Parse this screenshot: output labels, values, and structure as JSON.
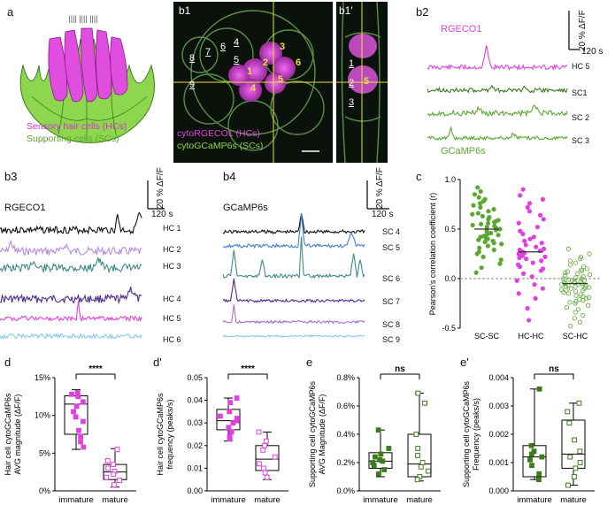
{
  "colors": {
    "magenta": "#e040e0",
    "green": "#5aa832",
    "dark_green": "#3c7a1e",
    "teal": "#3d8a86",
    "blue": "#3d7fd0",
    "light_blue": "#88c8ec",
    "purple": "#4b2a8e",
    "lavender": "#b88be0",
    "yellow": "#e8e040"
  },
  "panel_a": {
    "letter": "a",
    "legend_hc": "Sensory hair cells (HCs)",
    "legend_sc": "Supporting cells (SCs)"
  },
  "panel_b1": {
    "letter": "b1",
    "numbers_white": [
      "8",
      "7",
      "6",
      "4",
      "5",
      "9"
    ],
    "numbers_yellow": [
      "1",
      "2",
      "3",
      "4",
      "5",
      "6"
    ],
    "label_hc": "cytoRGECO1 (HCs)",
    "label_sc": "cytoGCaMP6s (SCs)"
  },
  "panel_b1p": {
    "letter": "b1'",
    "numbers_white": [
      "1",
      "2",
      "3"
    ],
    "number_yellow": "5"
  },
  "panel_b2": {
    "letter": "b2",
    "top_label": "RGECO1",
    "bottom_label": "GCaMP6s",
    "scale_y": "20 % ΔF/F",
    "scale_x": "120 s",
    "trace_labels": [
      "HC 5",
      "SC1",
      "SC 2",
      "SC 3"
    ]
  },
  "panel_b3": {
    "letter": "b3",
    "title": "RGECO1",
    "scale_y": "20 % ΔF/F",
    "scale_x": "120 s",
    "trace_labels": [
      "HC 1",
      "HC 2",
      "HC 3",
      "HC 4",
      "HC 5",
      "HC 6"
    ]
  },
  "panel_b4": {
    "letter": "b4",
    "title": "GCaMP6s",
    "scale_y": "20 % ΔF/F",
    "scale_x": "120 s",
    "trace_labels": [
      "SC 4",
      "SC 5",
      "SC 6",
      "SC 7",
      "SC 8",
      "SC 9"
    ]
  },
  "chart_data": [
    {
      "panel": "c",
      "type": "scatter",
      "ylabel": "Pearson's correlation coefficient (r)",
      "categories": [
        "SC-SC",
        "HC-HC",
        "SC-HC"
      ],
      "yticks": [
        "1.0",
        "0.5",
        "0.0",
        "-0.5"
      ],
      "ylim": [
        -0.5,
        1.0
      ],
      "means": [
        0.5,
        0.27,
        -0.05
      ],
      "series": [
        {
          "values": [
            0.92,
            0.88,
            0.85,
            0.82,
            0.8,
            0.78,
            0.76,
            0.74,
            0.72,
            0.7,
            0.68,
            0.66,
            0.65,
            0.63,
            0.62,
            0.6,
            0.59,
            0.58,
            0.57,
            0.56,
            0.55,
            0.54,
            0.53,
            0.52,
            0.51,
            0.5,
            0.49,
            0.48,
            0.47,
            0.46,
            0.45,
            0.44,
            0.43,
            0.42,
            0.41,
            0.4,
            0.39,
            0.38,
            0.37,
            0.36,
            0.35,
            0.33,
            0.31,
            0.29,
            0.27,
            0.25,
            0.22,
            0.19,
            0.15,
            0.11,
            0.06
          ]
        },
        {
          "values": [
            0.9,
            0.84,
            0.8,
            0.76,
            0.72,
            0.68,
            0.64,
            0.6,
            0.56,
            0.52,
            0.48,
            0.45,
            0.42,
            0.4,
            0.38,
            0.36,
            0.34,
            0.32,
            0.3,
            0.29,
            0.28,
            0.27,
            0.26,
            0.25,
            0.24,
            0.23,
            0.22,
            0.21,
            0.2,
            0.18,
            0.16,
            0.14,
            0.12,
            0.1,
            0.08,
            0.05,
            0.02,
            -0.02,
            -0.06,
            -0.1,
            -0.15,
            -0.2,
            -0.3,
            -0.42
          ]
        },
        {
          "values": [
            0.3,
            0.25,
            0.22,
            0.2,
            0.18,
            0.16,
            0.14,
            0.12,
            0.1,
            0.09,
            0.08,
            0.07,
            0.06,
            0.05,
            0.04,
            0.03,
            0.02,
            0.01,
            0.0,
            0.0,
            -0.01,
            -0.02,
            -0.02,
            -0.03,
            -0.03,
            -0.04,
            -0.04,
            -0.05,
            -0.05,
            -0.06,
            -0.06,
            -0.07,
            -0.07,
            -0.08,
            -0.08,
            -0.09,
            -0.09,
            -0.1,
            -0.1,
            -0.11,
            -0.12,
            -0.12,
            -0.13,
            -0.14,
            -0.15,
            -0.16,
            -0.17,
            -0.18,
            -0.19,
            -0.2,
            -0.21,
            -0.22,
            -0.23,
            -0.24,
            -0.25,
            -0.27,
            -0.29,
            -0.31,
            -0.34,
            -0.37,
            -0.4,
            -0.44,
            -0.48
          ]
        }
      ]
    },
    {
      "panel": "d",
      "type": "box",
      "ylabel": [
        "Hair cell cytoGCaMP6s",
        "AVG magnitude (ΔF/F)"
      ],
      "categories": [
        "immature",
        "mature"
      ],
      "yticks": [
        "0%",
        "5%",
        "10%",
        "15%"
      ],
      "ylim": [
        0,
        15
      ],
      "significance": "****",
      "groups": [
        {
          "values": [
            13.0,
            12.8,
            12.5,
            11.8,
            11.2,
            10.5,
            9.8,
            9.2,
            8.0,
            7.2,
            6.5,
            5.8
          ],
          "box": {
            "min": 5.5,
            "q1": 7.5,
            "median": 11.5,
            "q3": 12.6,
            "max": 13.4
          }
        },
        {
          "values": [
            5.5,
            4.0,
            3.5,
            3.0,
            2.6,
            2.2,
            1.8,
            1.4,
            0.8
          ],
          "box": {
            "min": 0.5,
            "q1": 1.5,
            "median": 2.5,
            "q3": 3.5,
            "max": 5.6
          }
        }
      ]
    },
    {
      "panel": "d'",
      "type": "box",
      "ylabel": [
        "Hair cell cytoGCaMP6s",
        "frequency (peaks/s)"
      ],
      "categories": [
        "immature",
        "mature"
      ],
      "yticks": [
        "0.00",
        "0.01",
        "0.02",
        "0.03",
        "0.04",
        "0.05"
      ],
      "ylim": [
        0,
        0.05
      ],
      "significance": "****",
      "groups": [
        {
          "values": [
            0.041,
            0.039,
            0.035,
            0.033,
            0.032,
            0.031,
            0.03,
            0.028,
            0.026,
            0.024,
            0.023
          ],
          "box": {
            "min": 0.022,
            "q1": 0.027,
            "median": 0.031,
            "q3": 0.036,
            "max": 0.041
          }
        },
        {
          "values": [
            0.026,
            0.022,
            0.02,
            0.018,
            0.015,
            0.012,
            0.01,
            0.008,
            0.006
          ],
          "box": {
            "min": 0.005,
            "q1": 0.009,
            "median": 0.014,
            "q3": 0.02,
            "max": 0.026
          }
        }
      ]
    },
    {
      "panel": "e",
      "type": "box",
      "ylabel": [
        "Supporting cell cytoGCaMP6s",
        "AVG Magnitude (ΔF/F)"
      ],
      "categories": [
        "immature",
        "mature"
      ],
      "yticks": [
        "0.0%",
        "0.2%",
        "0.4%",
        "0.6%",
        "0.8%"
      ],
      "ylim": [
        0,
        0.8
      ],
      "significance": "ns",
      "groups": [
        {
          "values": [
            0.43,
            0.3,
            0.26,
            0.24,
            0.22,
            0.21,
            0.2,
            0.18,
            0.15,
            0.12
          ],
          "box": {
            "min": 0.1,
            "q1": 0.16,
            "median": 0.21,
            "q3": 0.27,
            "max": 0.43
          }
        },
        {
          "values": [
            0.69,
            0.62,
            0.4,
            0.3,
            0.25,
            0.2,
            0.17,
            0.14,
            0.1,
            0.08
          ],
          "box": {
            "min": 0.07,
            "q1": 0.1,
            "median": 0.19,
            "q3": 0.4,
            "max": 0.69
          }
        }
      ]
    },
    {
      "panel": "e'",
      "type": "box",
      "ylabel": [
        "Supporting cell cytoGCaMP6s",
        "Frequency (peaks/s)"
      ],
      "categories": [
        "immature",
        "mature"
      ],
      "yticks": [
        "0.000",
        "0.001",
        "0.002",
        "0.003",
        "0.004"
      ],
      "ylim": [
        0,
        0.004
      ],
      "significance": "ns",
      "groups": [
        {
          "values": [
            0.0036,
            0.0016,
            0.0014,
            0.0013,
            0.0012,
            0.0011,
            0.0009,
            0.0006,
            0.0004
          ],
          "box": {
            "min": 0.0004,
            "q1": 0.0005,
            "median": 0.0012,
            "q3": 0.0016,
            "max": 0.0036
          }
        },
        {
          "values": [
            0.0031,
            0.0028,
            0.0024,
            0.0018,
            0.0014,
            0.0012,
            0.001,
            0.0008,
            0.0005,
            0.0002
          ],
          "box": {
            "min": 0.0002,
            "q1": 0.0008,
            "median": 0.0013,
            "q3": 0.0025,
            "max": 0.0031
          }
        }
      ]
    }
  ]
}
